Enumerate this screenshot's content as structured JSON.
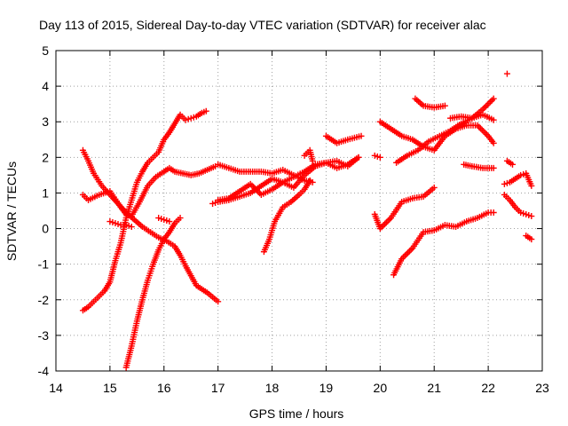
{
  "chart_data": {
    "type": "scatter",
    "title": "Day 113 of 2015, Sidereal Day-to-day VTEC variation (SDTVAR) for receiver alac",
    "xlabel": "GPS time / hours",
    "ylabel": "SDTVAR / TECUs",
    "xlim": [
      14,
      23
    ],
    "ylim": [
      -4,
      5
    ],
    "x_ticks": [
      "14",
      "15",
      "16",
      "17",
      "18",
      "19",
      "20",
      "21",
      "22",
      "23"
    ],
    "y_ticks": [
      "-4",
      "-3",
      "-2",
      "-1",
      "0",
      "1",
      "2",
      "3",
      "4",
      "5"
    ],
    "grid": true,
    "marker": "plus",
    "color": "#ff0000",
    "series": [
      {
        "x": [
          14.5,
          14.6,
          14.7,
          14.8,
          14.9,
          15.0,
          15.1,
          15.2,
          15.3,
          15.4,
          15.5,
          15.6,
          15.7,
          15.8,
          15.9,
          16.0,
          16.1,
          16.2,
          16.3,
          16.4,
          16.5,
          16.6,
          16.7,
          16.78
        ],
        "y": [
          -2.3,
          -2.2,
          -2.05,
          -1.9,
          -1.75,
          -1.5,
          -0.9,
          -0.4,
          0.3,
          0.8,
          1.3,
          1.6,
          1.85,
          2.0,
          2.15,
          2.5,
          2.7,
          2.95,
          3.2,
          3.05,
          3.1,
          3.15,
          3.25,
          3.3
        ]
      },
      {
        "x": [
          14.5,
          14.6,
          14.7,
          14.85,
          15.0,
          15.15,
          15.3,
          15.45,
          15.6,
          15.75,
          15.9,
          16.05,
          16.2,
          16.3,
          16.4,
          16.6,
          16.8,
          17.0,
          17.2,
          17.4,
          17.6,
          17.8,
          18.0,
          18.2,
          18.4,
          18.6,
          18.8
        ],
        "y": [
          2.2,
          1.9,
          1.55,
          1.2,
          0.95,
          0.7,
          0.45,
          0.25,
          0.05,
          -0.1,
          -0.25,
          -0.35,
          -0.5,
          -0.75,
          -1.05,
          -1.6,
          -1.8,
          -2.05,
          null,
          null,
          null,
          null,
          null,
          null,
          null,
          null,
          null
        ]
      },
      {
        "x": [
          14.5,
          14.6,
          14.8,
          15.0,
          15.2,
          15.3,
          15.4,
          15.55,
          15.7,
          15.85,
          16.0,
          16.1,
          16.2,
          16.35,
          16.5,
          16.65,
          16.8,
          16.95,
          17.0,
          17.2,
          17.4,
          17.6,
          17.8,
          18.0,
          18.2,
          18.4,
          18.6,
          18.75
        ],
        "y": [
          0.95,
          0.8,
          0.95,
          1.05,
          0.6,
          0.4,
          0.35,
          0.75,
          1.2,
          1.45,
          1.6,
          1.7,
          1.6,
          1.55,
          1.5,
          1.55,
          1.65,
          1.75,
          1.8,
          1.7,
          1.6,
          1.6,
          1.6,
          1.55,
          1.65,
          1.5,
          1.35,
          1.3
        ]
      },
      {
        "x": [
          15.3,
          15.4,
          15.5,
          15.6,
          15.7,
          15.8,
          15.9,
          16.0,
          16.1,
          16.2,
          16.3
        ],
        "y": [
          -3.9,
          -3.3,
          -2.6,
          -2.0,
          -1.45,
          -1.0,
          -0.6,
          -0.3,
          -0.1,
          0.15,
          0.3
        ]
      },
      {
        "x": [
          15.0,
          15.1,
          15.2,
          15.3,
          15.4
        ],
        "y": [
          0.2,
          0.15,
          0.1,
          0.1,
          0.05
        ]
      },
      {
        "x": [
          15.9,
          16.0,
          16.1
        ],
        "y": [
          0.3,
          0.25,
          0.2
        ]
      },
      {
        "x": [
          16.9,
          17.0,
          17.2,
          17.4,
          17.6,
          17.8,
          18.0,
          18.2,
          18.4,
          18.6,
          18.8,
          19.0,
          19.2,
          19.4,
          19.6
        ],
        "y": [
          0.7,
          0.75,
          0.8,
          0.9,
          1.0,
          1.2,
          1.4,
          1.3,
          1.45,
          1.6,
          1.8,
          1.85,
          1.9,
          1.75,
          2.0
        ]
      },
      {
        "x": [
          17.0,
          17.2,
          17.4,
          17.6,
          17.8,
          18.0,
          18.2,
          18.4,
          18.6,
          18.8,
          19.0,
          19.2,
          19.4,
          19.6
        ],
        "y": [
          0.8,
          0.85,
          1.05,
          1.25,
          0.95,
          1.1,
          1.3,
          1.15,
          1.5,
          1.75,
          1.85,
          1.7,
          1.8,
          2.0
        ]
      },
      {
        "x": [
          17.85,
          17.95,
          18.05,
          18.2,
          18.35,
          18.5,
          18.6,
          18.7
        ],
        "y": [
          -0.65,
          -0.3,
          0.2,
          0.6,
          0.75,
          0.95,
          1.1,
          1.35
        ]
      },
      {
        "x": [
          18.6,
          18.7,
          18.75
        ],
        "y": [
          2.05,
          2.2,
          1.9
        ]
      },
      {
        "x": [
          19.0,
          19.2,
          19.4,
          19.65
        ],
        "y": [
          2.6,
          2.4,
          2.5,
          2.6
        ]
      },
      {
        "x": [
          19.9,
          20.0
        ],
        "y": [
          2.05,
          2.0
        ]
      },
      {
        "x": [
          20.0,
          20.2,
          20.4,
          20.6,
          20.8,
          21.0,
          21.2,
          21.4,
          21.6,
          21.8,
          22.0,
          22.1
        ],
        "y": [
          3.0,
          2.8,
          2.6,
          2.5,
          2.3,
          2.2,
          2.6,
          2.8,
          2.9,
          2.9,
          2.6,
          2.4
        ]
      },
      {
        "x": [
          19.9,
          20.0,
          20.2,
          20.4,
          20.6,
          20.8,
          21.0
        ],
        "y": [
          0.4,
          0.0,
          0.3,
          0.75,
          0.85,
          0.9,
          1.15
        ]
      },
      {
        "x": [
          20.25,
          20.4,
          20.6,
          20.8,
          21.0,
          21.2,
          21.4,
          21.6,
          21.8,
          22.0,
          22.1
        ],
        "y": [
          -1.3,
          -0.85,
          -0.55,
          -0.1,
          -0.05,
          0.1,
          0.05,
          0.2,
          0.3,
          0.45,
          0.45
        ]
      },
      {
        "x": [
          20.3,
          20.5,
          20.7,
          20.9,
          21.1,
          21.3,
          21.5,
          21.7,
          21.9,
          22.1
        ],
        "y": [
          1.85,
          2.05,
          2.2,
          2.45,
          2.6,
          2.75,
          2.95,
          3.1,
          3.35,
          3.65
        ]
      },
      {
        "x": [
          20.65,
          20.8,
          21.0,
          21.2
        ],
        "y": [
          3.65,
          3.45,
          3.4,
          3.45
        ]
      },
      {
        "x": [
          21.3,
          21.5,
          21.7,
          21.9,
          22.1
        ],
        "y": [
          3.1,
          3.15,
          3.1,
          3.2,
          3.05
        ]
      },
      {
        "x": [
          21.55,
          21.7,
          21.9,
          22.1
        ],
        "y": [
          1.8,
          1.75,
          1.7,
          1.7
        ]
      },
      {
        "x": [
          22.3,
          22.4,
          22.5,
          22.6,
          22.7,
          22.8
        ],
        "y": [
          1.25,
          1.3,
          1.4,
          1.5,
          1.55,
          1.2
        ]
      },
      {
        "x": [
          22.3,
          22.4,
          22.5,
          22.6,
          22.7,
          22.8
        ],
        "y": [
          0.95,
          0.8,
          0.6,
          0.45,
          0.4,
          0.35
        ]
      },
      {
        "x": [
          22.35,
          22.45
        ],
        "y": [
          1.9,
          1.8
        ]
      },
      {
        "x": [
          22.7,
          22.8
        ],
        "y": [
          -0.2,
          -0.3
        ]
      },
      {
        "x": [
          22.35
        ],
        "y": [
          4.35
        ]
      }
    ]
  }
}
